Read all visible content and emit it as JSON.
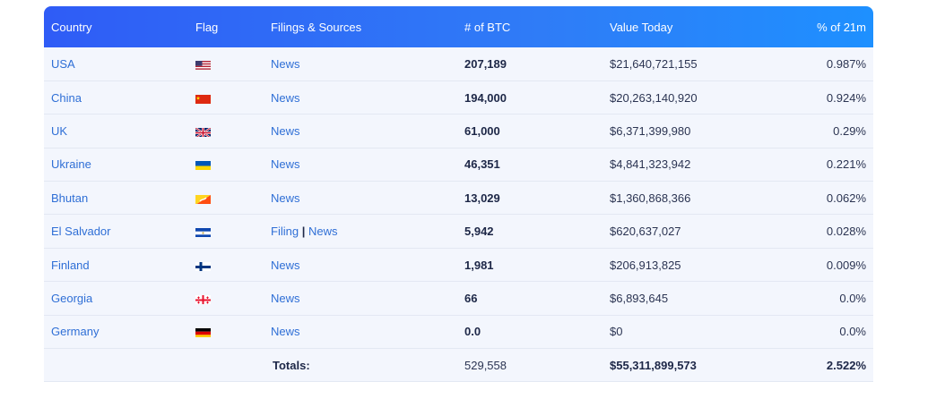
{
  "columns": {
    "country": "Country",
    "flag": "Flag",
    "filings": "Filings & Sources",
    "btc": "# of BTC",
    "value": "Value Today",
    "pct": "% of 21m"
  },
  "rows": [
    {
      "country": "USA",
      "flag": "us-flag-icon",
      "sources": [
        "News"
      ],
      "btc": "207,189",
      "value": "$21,640,721,155",
      "pct": "0.987%"
    },
    {
      "country": "China",
      "flag": "cn-flag-icon",
      "sources": [
        "News"
      ],
      "btc": "194,000",
      "value": "$20,263,140,920",
      "pct": "0.924%"
    },
    {
      "country": "UK",
      "flag": "uk-flag-icon",
      "sources": [
        "News"
      ],
      "btc": "61,000",
      "value": "$6,371,399,980",
      "pct": "0.29%"
    },
    {
      "country": "Ukraine",
      "flag": "ua-flag-icon",
      "sources": [
        "News"
      ],
      "btc": "46,351",
      "value": "$4,841,323,942",
      "pct": "0.221%"
    },
    {
      "country": "Bhutan",
      "flag": "bt-flag-icon",
      "sources": [
        "News"
      ],
      "btc": "13,029",
      "value": "$1,360,868,366",
      "pct": "0.062%"
    },
    {
      "country": "El Salvador",
      "flag": "sv-flag-icon",
      "sources": [
        "Filing",
        "News"
      ],
      "btc": "5,942",
      "value": "$620,637,027",
      "pct": "0.028%"
    },
    {
      "country": "Finland",
      "flag": "fi-flag-icon",
      "sources": [
        "News"
      ],
      "btc": "1,981",
      "value": "$206,913,825",
      "pct": "0.009%"
    },
    {
      "country": "Georgia",
      "flag": "ge-flag-icon",
      "sources": [
        "News"
      ],
      "btc": "66",
      "value": "$6,893,645",
      "pct": "0.0%"
    },
    {
      "country": "Germany",
      "flag": "de-flag-icon",
      "sources": [
        "News"
      ],
      "btc": "0.0",
      "value": "$0",
      "pct": "0.0%"
    }
  ],
  "totals": {
    "label": "Totals:",
    "btc": "529,558",
    "value": "$55,311,899,573",
    "pct": "2.522%"
  },
  "colors": {
    "header_start": "#2f5cf6",
    "header_end": "#1e90ff",
    "row_bg": "#f3f6fd",
    "link": "#2f6fd6",
    "text_dark": "#1d2747"
  }
}
